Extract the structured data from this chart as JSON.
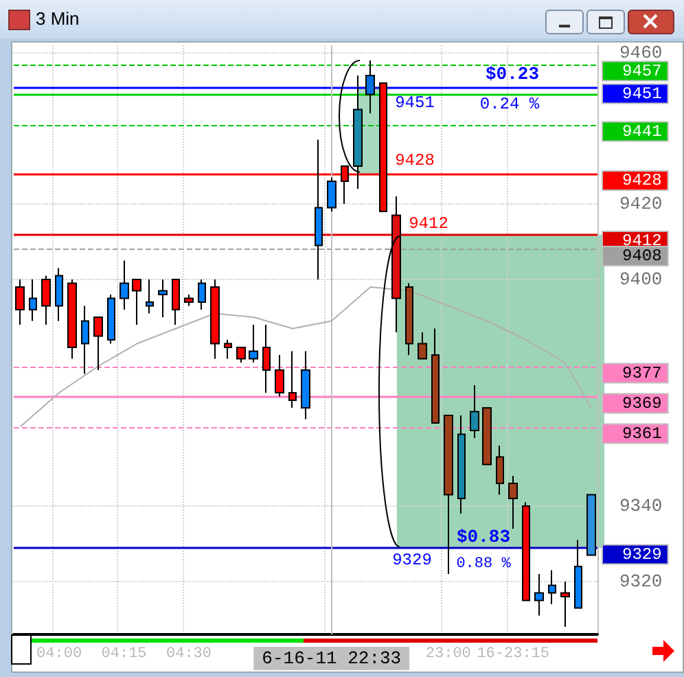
{
  "chart_data": {
    "type": "candlestick",
    "title": "3 Min",
    "categories": [
      null,
      null,
      null,
      "04:00",
      null,
      null,
      null,
      null,
      "04:15",
      null,
      null,
      null,
      null,
      "04:30",
      null,
      null,
      null,
      null,
      null,
      null,
      null,
      null,
      null,
      null,
      "6-16-11 22:33",
      null,
      null,
      null,
      null,
      null,
      null,
      null,
      null,
      "23:00",
      null,
      null,
      null,
      null,
      "16-23:15",
      null,
      null,
      null,
      null,
      null,
      null
    ],
    "ohlc": [
      [
        9398,
        9400,
        9388,
        9392
      ],
      [
        9392,
        9400,
        9389,
        9395
      ],
      [
        9400,
        9401,
        9388,
        9393
      ],
      [
        9393,
        9403,
        9389,
        9401
      ],
      [
        9399,
        9400,
        9379,
        9382
      ],
      [
        9383,
        9393,
        9375,
        9389
      ],
      [
        9390,
        9390,
        9376,
        9385
      ],
      [
        9384,
        9396,
        9383,
        9395
      ],
      [
        9395,
        9405,
        9392,
        9399
      ],
      [
        9400,
        9400,
        9388,
        9397
      ],
      [
        9393,
        9400,
        9391,
        9394
      ],
      [
        9396,
        9400,
        9390,
        9397
      ],
      [
        9400,
        9400,
        9388,
        9392
      ],
      [
        9395,
        9396,
        9393,
        9394
      ],
      [
        9394,
        9400,
        9392,
        9399
      ],
      [
        9398,
        9400,
        9379,
        9383
      ],
      [
        9383,
        9384,
        9379,
        9382
      ],
      [
        9382,
        9382,
        9378,
        9379
      ],
      [
        9379,
        9388,
        9378,
        9381
      ],
      [
        9382,
        9388,
        9370,
        9376
      ],
      [
        9376,
        9380,
        9369,
        9370
      ],
      [
        9370,
        9381,
        9366,
        9368
      ],
      [
        9366,
        9381,
        9363,
        9376
      ],
      [
        9409,
        9437,
        9400,
        9419
      ],
      [
        9419,
        9427,
        9418,
        9426
      ],
      [
        9430,
        9430,
        9420,
        9426
      ],
      [
        9430,
        9454,
        9424,
        9445
      ],
      [
        9449,
        9458,
        9444,
        9454
      ],
      [
        9452,
        9452,
        9418,
        9418
      ],
      [
        9417,
        9422,
        9386,
        9395
      ],
      [
        9398,
        9399,
        9380,
        9383
      ],
      [
        9383,
        9386,
        9379,
        9379
      ],
      [
        9380,
        9387,
        9362,
        9362
      ],
      [
        9364,
        9364,
        9322,
        9343
      ],
      [
        9342,
        9364,
        9338,
        9359
      ],
      [
        9360,
        9372,
        9358,
        9365
      ],
      [
        9366,
        9366,
        9351,
        9351
      ],
      [
        9353,
        9356,
        9343,
        9346
      ],
      [
        9346,
        9348,
        9334,
        9342
      ],
      [
        9340,
        9341,
        9315,
        9315
      ],
      [
        9315,
        9322,
        9311,
        9317
      ],
      [
        9317,
        9323,
        9314,
        9319
      ],
      [
        9317,
        9320,
        9308,
        9316
      ],
      [
        9313,
        9331,
        9313,
        9324
      ],
      [
        9327,
        9343,
        9327,
        9343
      ]
    ],
    "colors": [
      "#ff0000",
      "#0080ff",
      "#ff0000",
      "#0080ff",
      "#ff0000",
      "#0080ff",
      "#ff0000",
      "#0080ff",
      "#0080ff",
      "#ff0000",
      "#0080ff",
      "#0080ff",
      "#ff0000",
      "#ff0000",
      "#0080ff",
      "#ff0000",
      "#ff0000",
      "#ff0000",
      "#0080ff",
      "#ff0000",
      "#ff0000",
      "#ff0000",
      "#0080ff",
      "#0080ff",
      "#0080ff",
      "#ff0000",
      "#1a8aa8",
      "#0070e0",
      "#ff0000",
      "#e01010",
      "#a0401a",
      "#a0401a",
      "#a0401a",
      "#a0401a",
      "#1a8aa8",
      "#1a8aa8",
      "#a0401a",
      "#a0401a",
      "#a0401a",
      "#ff0000",
      "#0080ff",
      "#0080ff",
      "#ff0000",
      "#0080ff",
      "#3090e0"
    ],
    "series": [
      {
        "type": "line",
        "color": "#b0b0b0",
        "values": [
          9361,
          null,
          null,
          9370,
          null,
          null,
          9377,
          null,
          null,
          9383,
          null,
          null,
          9387,
          null,
          null,
          9391,
          null,
          null,
          9390,
          null,
          null,
          9387,
          null,
          null,
          9389,
          null,
          null,
          9398,
          null,
          null,
          9397,
          null,
          null,
          9393,
          null,
          null,
          9389,
          null,
          null,
          9384,
          null,
          null,
          9378,
          null,
          9366
        ]
      }
    ],
    "ylim": [
      9306,
      9462
    ],
    "yticks": [
      9320,
      9340,
      9400,
      9420,
      9460
    ],
    "grid": true,
    "line_style": "solid",
    "marker": "none",
    "ref_lines": [
      {
        "axis": "y",
        "value": 9457,
        "label": "9457",
        "color": "#00c800",
        "line_style": "dashed"
      },
      {
        "axis": "y",
        "value": 9449,
        "label": null,
        "color": "#00d000",
        "line_style": "solid"
      },
      {
        "axis": "y",
        "value": 9441,
        "label": "9441",
        "color": "#00c800",
        "line_style": "dashed"
      },
      {
        "axis": "y",
        "value": 9451,
        "label": "9451",
        "color": "#0000ff",
        "line_style": "solid"
      },
      {
        "axis": "y",
        "value": 9428,
        "label": "9428",
        "color": "#ff0000",
        "line_style": "solid"
      },
      {
        "axis": "y",
        "value": 9412,
        "label": "9412",
        "color": "#e00000",
        "line_style": "solid"
      },
      {
        "axis": "y",
        "value": 9408,
        "label": "9408",
        "color": "#a0a0a0",
        "line_style": "dashed"
      },
      {
        "axis": "y",
        "value": 9377,
        "label": "9377",
        "color": "#ff80c0",
        "line_style": "dashed"
      },
      {
        "axis": "y",
        "value": 9369,
        "label": "9369",
        "color": "#ff80c0",
        "line_style": "solid"
      },
      {
        "axis": "y",
        "value": 9361,
        "label": "9361",
        "color": "#ff80c0",
        "line_style": "dashed"
      },
      {
        "axis": "y",
        "value": 9329,
        "label": "9329",
        "color": "#0000cc",
        "line_style": "solid"
      },
      {
        "axis": "x",
        "value": "6-16-11 22:33",
        "label": null,
        "color": "#c0c0c0",
        "line_style": "solid"
      }
    ],
    "annotations": [
      "$0.23",
      "0.24 %",
      {
        "text": "9451",
        "y": 9451
      },
      {
        "text": "9428",
        "y": 9428
      },
      {
        "text": "9412",
        "y": 9412
      },
      "$0.83",
      "0.88 %",
      {
        "text": "9329",
        "y": 9329
      }
    ]
  }
}
